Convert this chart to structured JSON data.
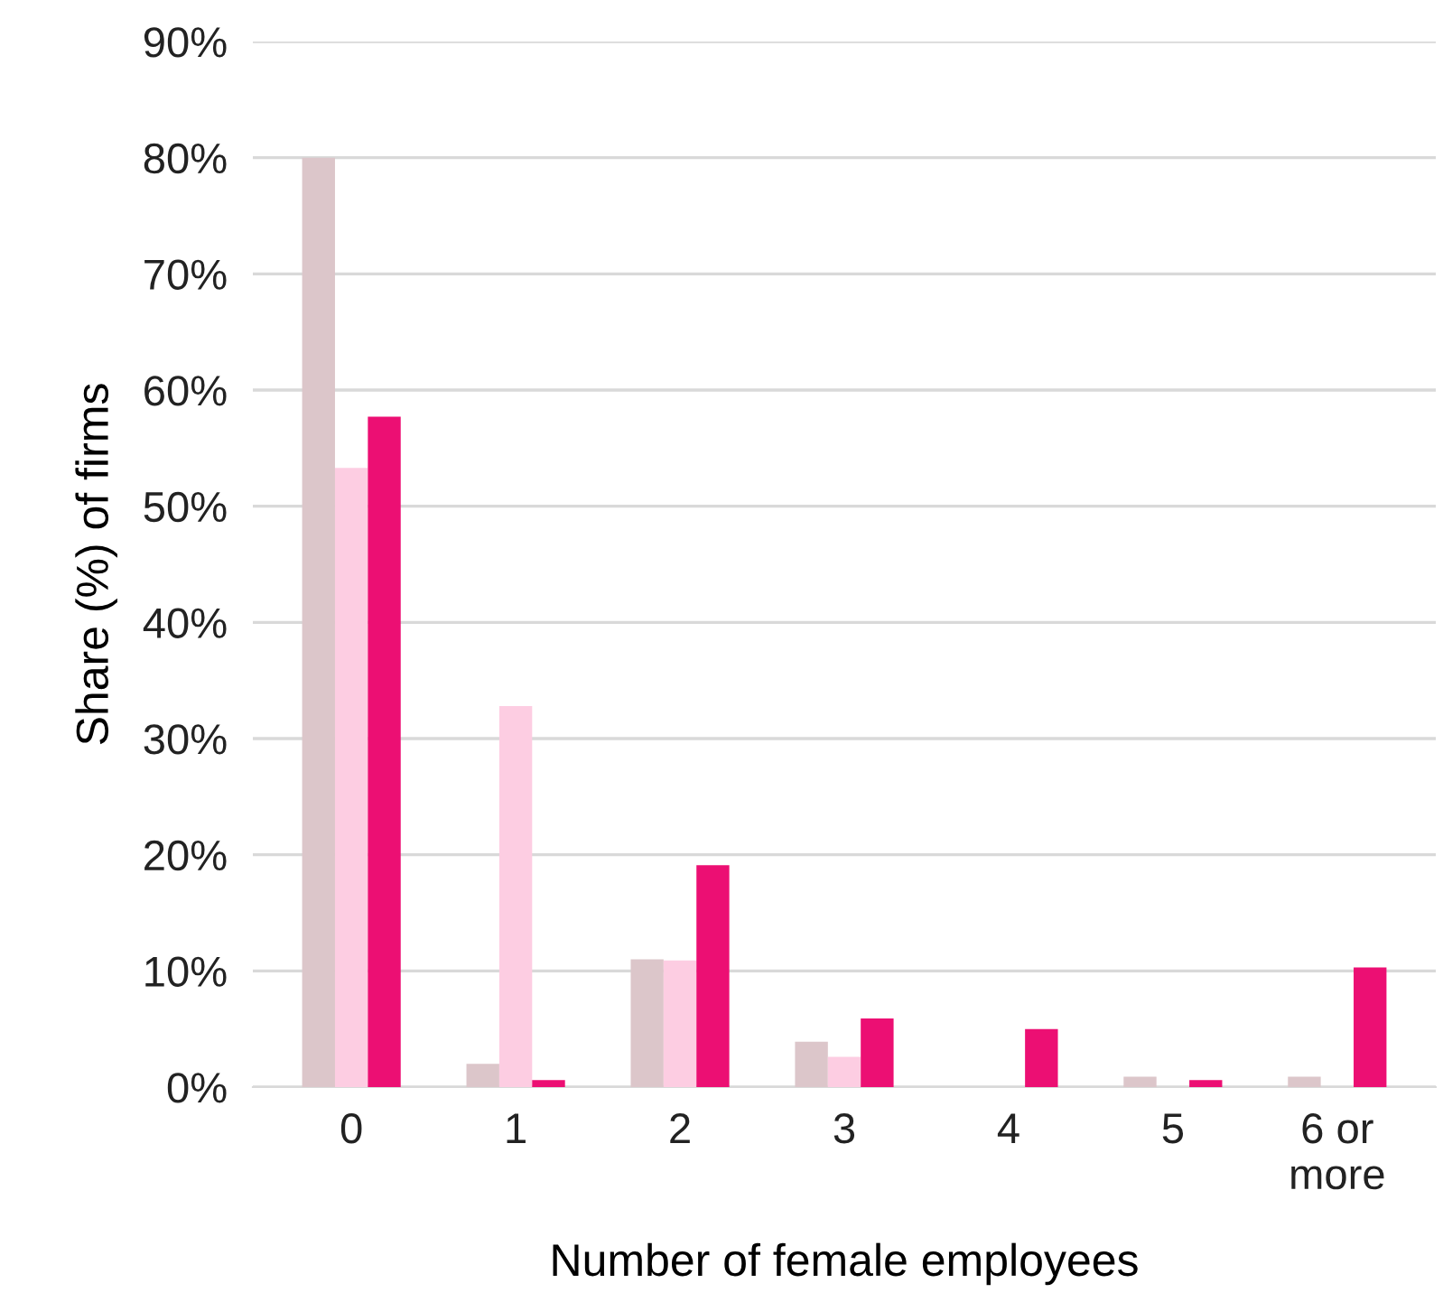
{
  "chart_data": {
    "type": "bar",
    "xlabel": "Number of female employees",
    "ylabel": "Share (%) of firms",
    "categories": [
      "0",
      "1",
      "2",
      "3",
      "4",
      "5",
      "6 or\nmore"
    ],
    "series": [
      {
        "color": "#dcc6ca",
        "values": [
          80,
          2.0,
          11.0,
          3.9,
          0,
          0.9,
          0.9
        ]
      },
      {
        "color": "#fdcde2",
        "values": [
          53.3,
          32.8,
          10.9,
          2.6,
          0,
          0,
          0
        ]
      },
      {
        "color": "#ec0f73",
        "values": [
          57.7,
          0.6,
          19.1,
          5.9,
          5.0,
          0.6,
          10.3
        ]
      }
    ],
    "ylim": [
      0,
      90
    ],
    "yticks": [
      {
        "value": 0,
        "label": "0%"
      },
      {
        "value": 10,
        "label": "10%"
      },
      {
        "value": 20,
        "label": "20%"
      },
      {
        "value": 30,
        "label": "30%"
      },
      {
        "value": 40,
        "label": "40%"
      },
      {
        "value": 50,
        "label": "50%"
      },
      {
        "value": 60,
        "label": "60%"
      },
      {
        "value": 70,
        "label": "70%"
      },
      {
        "value": 80,
        "label": "80%"
      },
      {
        "value": 90,
        "label": "90%"
      }
    ],
    "grid": "y",
    "legend": false
  }
}
